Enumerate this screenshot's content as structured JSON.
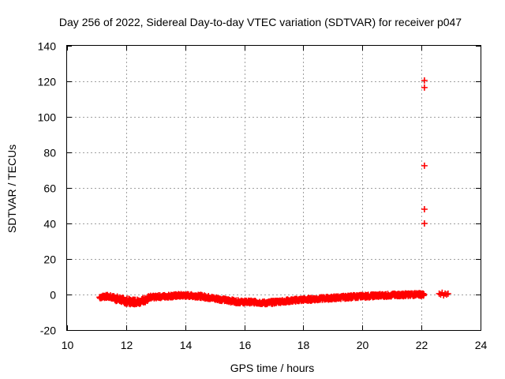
{
  "chart_data": {
    "type": "scatter",
    "title": "Day 256 of 2022, Sidereal Day-to-day VTEC variation (SDTVAR) for receiver p047",
    "xlabel": "GPS time / hours",
    "ylabel": "SDTVAR / TECUs",
    "xlim": [
      10,
      24
    ],
    "ylim": [
      -20,
      140
    ],
    "x_ticks": [
      "10",
      "12",
      "14",
      "16",
      "18",
      "20",
      "22",
      "24"
    ],
    "y_ticks": [
      "-20",
      "0",
      "20",
      "40",
      "60",
      "80",
      "100",
      "120",
      "140"
    ],
    "grid": true,
    "marker": "+",
    "color": "#ff0000",
    "series": [
      {
        "name": "SDTVAR",
        "band": {
          "x": [
            11.1,
            11.3,
            11.5,
            11.7,
            11.9,
            12.1,
            12.3,
            12.5,
            12.7,
            12.9,
            13.1,
            13.3,
            13.5,
            13.7,
            13.9,
            14.1,
            14.3,
            14.5,
            14.7,
            14.9,
            15.1,
            15.3,
            15.5,
            15.7,
            15.9,
            16.1,
            16.3,
            16.5,
            16.7,
            16.9,
            17.1,
            17.3,
            17.5,
            17.7,
            17.9,
            18.1,
            18.3,
            18.5,
            18.7,
            18.9,
            19.1,
            19.3,
            19.5,
            19.7,
            19.9,
            20.1,
            20.3,
            20.5,
            20.7,
            20.9,
            21.1,
            21.3,
            21.5,
            21.7,
            21.9,
            22.05
          ],
          "y": [
            -1.5,
            -1.0,
            -1.5,
            -2.5,
            -3.5,
            -4.0,
            -4.0,
            -3.5,
            -2.5,
            -1.5,
            -1.2,
            -1.0,
            -0.8,
            -0.6,
            -0.5,
            -0.6,
            -0.8,
            -1.0,
            -1.5,
            -2.0,
            -2.5,
            -3.0,
            -3.5,
            -4.0,
            -4.2,
            -4.2,
            -4.3,
            -4.5,
            -4.8,
            -4.5,
            -4.0,
            -3.8,
            -3.5,
            -3.2,
            -3.0,
            -2.8,
            -2.6,
            -2.4,
            -2.2,
            -2.0,
            -1.8,
            -1.6,
            -1.4,
            -1.2,
            -1.0,
            -0.9,
            -0.8,
            -0.6,
            -0.5,
            -0.4,
            -0.3,
            -0.2,
            -0.1,
            0.0,
            0.0,
            0.0
          ]
        },
        "late_cluster": {
          "x": [
            22.6,
            22.65,
            22.7,
            22.75,
            22.8,
            22.85,
            22.9
          ],
          "y": [
            0.5,
            0.0,
            1.0,
            -0.5,
            0.5,
            0.0,
            0.5
          ]
        },
        "outliers": {
          "x": [
            22.1,
            22.1,
            22.1,
            22.1,
            22.1
          ],
          "y": [
            120.5,
            116.5,
            72.5,
            48.0,
            40.0
          ]
        }
      }
    ]
  }
}
